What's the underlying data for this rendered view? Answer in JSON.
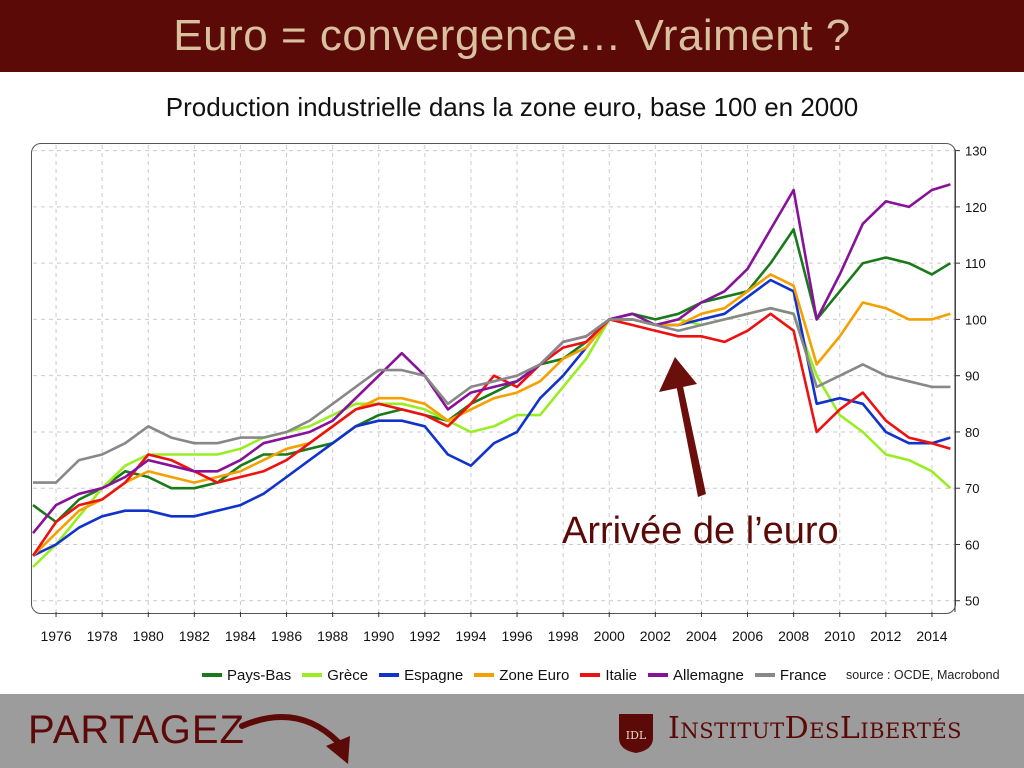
{
  "header": {
    "title": "Euro = convergence… Vraiment ?"
  },
  "chart_data": {
    "type": "line",
    "title": "Production industrielle dans la zone euro, base 100 en 2000",
    "xlabel": "",
    "ylabel": "",
    "xlim": [
      1975.0,
      2015.0
    ],
    "ylim": [
      48,
      131
    ],
    "x_ticks": [
      1976,
      1978,
      1980,
      1982,
      1984,
      1986,
      1988,
      1990,
      1992,
      1994,
      1996,
      1998,
      2000,
      2002,
      2004,
      2006,
      2008,
      2010,
      2012,
      2014
    ],
    "y_ticks": [
      50,
      60,
      70,
      80,
      90,
      100,
      110,
      120,
      130
    ],
    "grid": true,
    "legend_position": "bottom",
    "x": [
      1975,
      1976,
      1977,
      1978,
      1979,
      1980,
      1981,
      1982,
      1983,
      1984,
      1985,
      1986,
      1987,
      1988,
      1989,
      1990,
      1991,
      1992,
      1993,
      1994,
      1995,
      1996,
      1997,
      1998,
      1999,
      2000,
      2001,
      2002,
      2003,
      2004,
      2005,
      2006,
      2007,
      2008,
      2009,
      2010,
      2011,
      2012,
      2013,
      2014,
      2014.8
    ],
    "series": [
      {
        "name": "Pays-Bas",
        "color": "#1a7a1a",
        "values": [
          67,
          64,
          68,
          70,
          73,
          72,
          70,
          70,
          71,
          74,
          76,
          76,
          77,
          78,
          81,
          83,
          84,
          83,
          82,
          85,
          87,
          89,
          92,
          93,
          96,
          100,
          101,
          100,
          101,
          103,
          104,
          105,
          110,
          116,
          100,
          105,
          110,
          111,
          110,
          108,
          110
        ]
      },
      {
        "name": "Grèce",
        "color": "#99ee22",
        "values": [
          56,
          60,
          65,
          70,
          74,
          76,
          76,
          76,
          76,
          77,
          79,
          80,
          81,
          83,
          85,
          85,
          85,
          84,
          82,
          80,
          81,
          83,
          83,
          88,
          93,
          100,
          100,
          99,
          100,
          99,
          100,
          101,
          102,
          101,
          90,
          83,
          80,
          76,
          75,
          73,
          70
        ]
      },
      {
        "name": "Espagne",
        "color": "#1133cc",
        "values": [
          58,
          60,
          63,
          65,
          66,
          66,
          65,
          65,
          66,
          67,
          69,
          72,
          75,
          78,
          81,
          82,
          82,
          81,
          76,
          74,
          78,
          80,
          86,
          90,
          95,
          100,
          100,
          99,
          99,
          100,
          101,
          104,
          107,
          105,
          85,
          86,
          85,
          80,
          78,
          78,
          79
        ]
      },
      {
        "name": "Zone Euro",
        "color": "#f5a000",
        "values": [
          58,
          62,
          66,
          68,
          71,
          73,
          72,
          71,
          72,
          73,
          75,
          77,
          78,
          81,
          84,
          86,
          86,
          85,
          82,
          84,
          86,
          87,
          89,
          93,
          95,
          100,
          100,
          99,
          99,
          101,
          102,
          105,
          108,
          106,
          92,
          97,
          103,
          102,
          100,
          100,
          101
        ]
      },
      {
        "name": "Italie",
        "color": "#ee1111",
        "values": [
          58,
          64,
          67,
          68,
          71,
          76,
          75,
          73,
          71,
          72,
          73,
          75,
          78,
          81,
          84,
          85,
          84,
          83,
          81,
          85,
          90,
          88,
          92,
          95,
          96,
          100,
          99,
          98,
          97,
          97,
          96,
          98,
          101,
          98,
          80,
          84,
          87,
          82,
          79,
          78,
          77
        ]
      },
      {
        "name": "Allemagne",
        "color": "#881199",
        "values": [
          62,
          67,
          69,
          70,
          72,
          75,
          74,
          73,
          73,
          75,
          78,
          79,
          80,
          82,
          86,
          90,
          94,
          90,
          84,
          87,
          88,
          89,
          92,
          96,
          97,
          100,
          101,
          99,
          100,
          103,
          105,
          109,
          116,
          123,
          100,
          108,
          117,
          121,
          120,
          123,
          124
        ]
      },
      {
        "name": "France",
        "color": "#888888",
        "values": [
          71,
          71,
          75,
          76,
          78,
          81,
          79,
          78,
          78,
          79,
          79,
          80,
          82,
          85,
          88,
          91,
          91,
          90,
          85,
          88,
          89,
          90,
          92,
          96,
          97,
          100,
          100,
          99,
          98,
          99,
          100,
          101,
          102,
          101,
          88,
          90,
          92,
          90,
          89,
          88,
          88
        ]
      }
    ],
    "annotation": "Arrivée de l’euro",
    "source": "source : OCDE, Macrobond"
  },
  "footer": {
    "share_label": "PARTAGEZ",
    "logo_mark": "IDL",
    "logo_text": "InstitutDesLibertés"
  }
}
